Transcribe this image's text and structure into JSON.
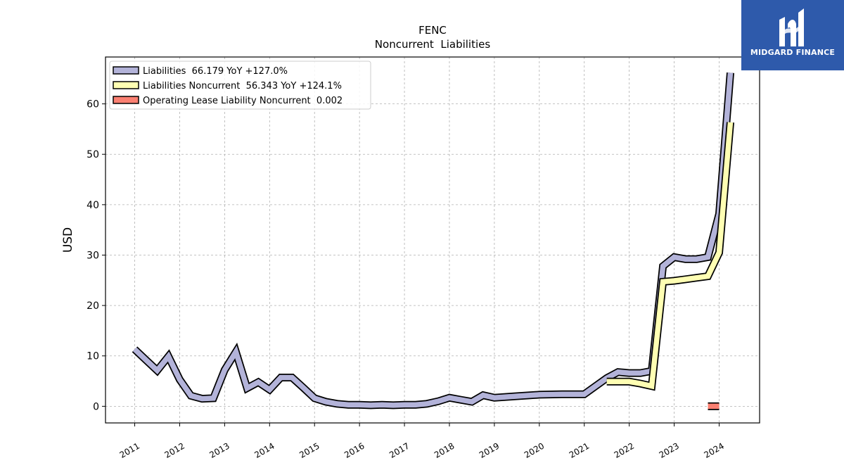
{
  "chart_data": {
    "type": "line",
    "title": "FENC",
    "subtitle": "Noncurrent  Liabilities",
    "ylabel": "USD",
    "xlabel": "",
    "xlim": [
      2010.35,
      2024.9
    ],
    "ylim": [
      -3.3,
      69.3
    ],
    "yticks": [
      0,
      10,
      20,
      30,
      40,
      50,
      60
    ],
    "xticks": [
      2011,
      2012,
      2013,
      2014,
      2015,
      2016,
      2017,
      2018,
      2019,
      2020,
      2021,
      2022,
      2023,
      2024
    ],
    "grid": true,
    "legend_position": "top-left",
    "series": [
      {
        "name": "Liabilities",
        "legend_label": "Liabilities  66.179 YoY +127.0%",
        "color": "#b3b3d9",
        "points": [
          [
            2011.0,
            11.3
          ],
          [
            2011.25,
            9.2
          ],
          [
            2011.5,
            7.1
          ],
          [
            2011.75,
            9.9
          ],
          [
            2012.0,
            5.3
          ],
          [
            2012.25,
            2.1
          ],
          [
            2012.5,
            1.5
          ],
          [
            2012.75,
            1.6
          ],
          [
            2013.0,
            7.2
          ],
          [
            2013.25,
            10.8
          ],
          [
            2013.5,
            3.6
          ],
          [
            2013.75,
            4.8
          ],
          [
            2014.0,
            3.3
          ],
          [
            2014.25,
            5.7
          ],
          [
            2014.5,
            5.7
          ],
          [
            2014.75,
            3.7
          ],
          [
            2015.0,
            1.6
          ],
          [
            2015.25,
            0.9
          ],
          [
            2015.5,
            0.5
          ],
          [
            2015.75,
            0.3
          ],
          [
            2016.0,
            0.3
          ],
          [
            2016.25,
            0.2
          ],
          [
            2016.5,
            0.3
          ],
          [
            2016.75,
            0.2
          ],
          [
            2017.0,
            0.3
          ],
          [
            2017.25,
            0.3
          ],
          [
            2017.5,
            0.5
          ],
          [
            2017.75,
            1.0
          ],
          [
            2018.0,
            1.7
          ],
          [
            2018.25,
            1.3
          ],
          [
            2018.5,
            0.9
          ],
          [
            2018.75,
            2.2
          ],
          [
            2019.0,
            1.7
          ],
          [
            2019.5,
            2.0
          ],
          [
            2020.0,
            2.3
          ],
          [
            2020.5,
            2.4
          ],
          [
            2021.0,
            2.4
          ],
          [
            2021.5,
            5.6
          ],
          [
            2021.75,
            6.8
          ],
          [
            2022.0,
            6.6
          ],
          [
            2022.25,
            6.6
          ],
          [
            2022.5,
            7.0
          ],
          [
            2022.75,
            27.8
          ],
          [
            2023.0,
            29.6
          ],
          [
            2023.25,
            29.2
          ],
          [
            2023.5,
            29.2
          ],
          [
            2023.75,
            29.6
          ],
          [
            2024.0,
            38.2
          ],
          [
            2024.25,
            66.179
          ]
        ]
      },
      {
        "name": "Liabilities Noncurrent",
        "legend_label": "Liabilities Noncurrent  56.343 YoY +124.1%",
        "color": "#ffffb3",
        "points": [
          [
            2021.5,
            4.9
          ],
          [
            2021.75,
            4.9
          ],
          [
            2022.0,
            4.9
          ],
          [
            2022.25,
            4.5
          ],
          [
            2022.5,
            4.0
          ],
          [
            2022.75,
            24.7
          ],
          [
            2023.0,
            24.9
          ],
          [
            2023.25,
            25.2
          ],
          [
            2023.5,
            25.5
          ],
          [
            2023.75,
            25.8
          ],
          [
            2024.0,
            30.5
          ],
          [
            2024.25,
            56.343
          ]
        ]
      },
      {
        "name": "Operating Lease Liability Noncurrent",
        "legend_label": "Operating Lease Liability Noncurrent  0.002",
        "color": "#fb8072",
        "points": [
          [
            2023.75,
            0.002
          ],
          [
            2024.0,
            0.002
          ]
        ]
      }
    ]
  },
  "brand": {
    "name": "MIDGARD FINANCE",
    "background": "#2e5aab"
  }
}
